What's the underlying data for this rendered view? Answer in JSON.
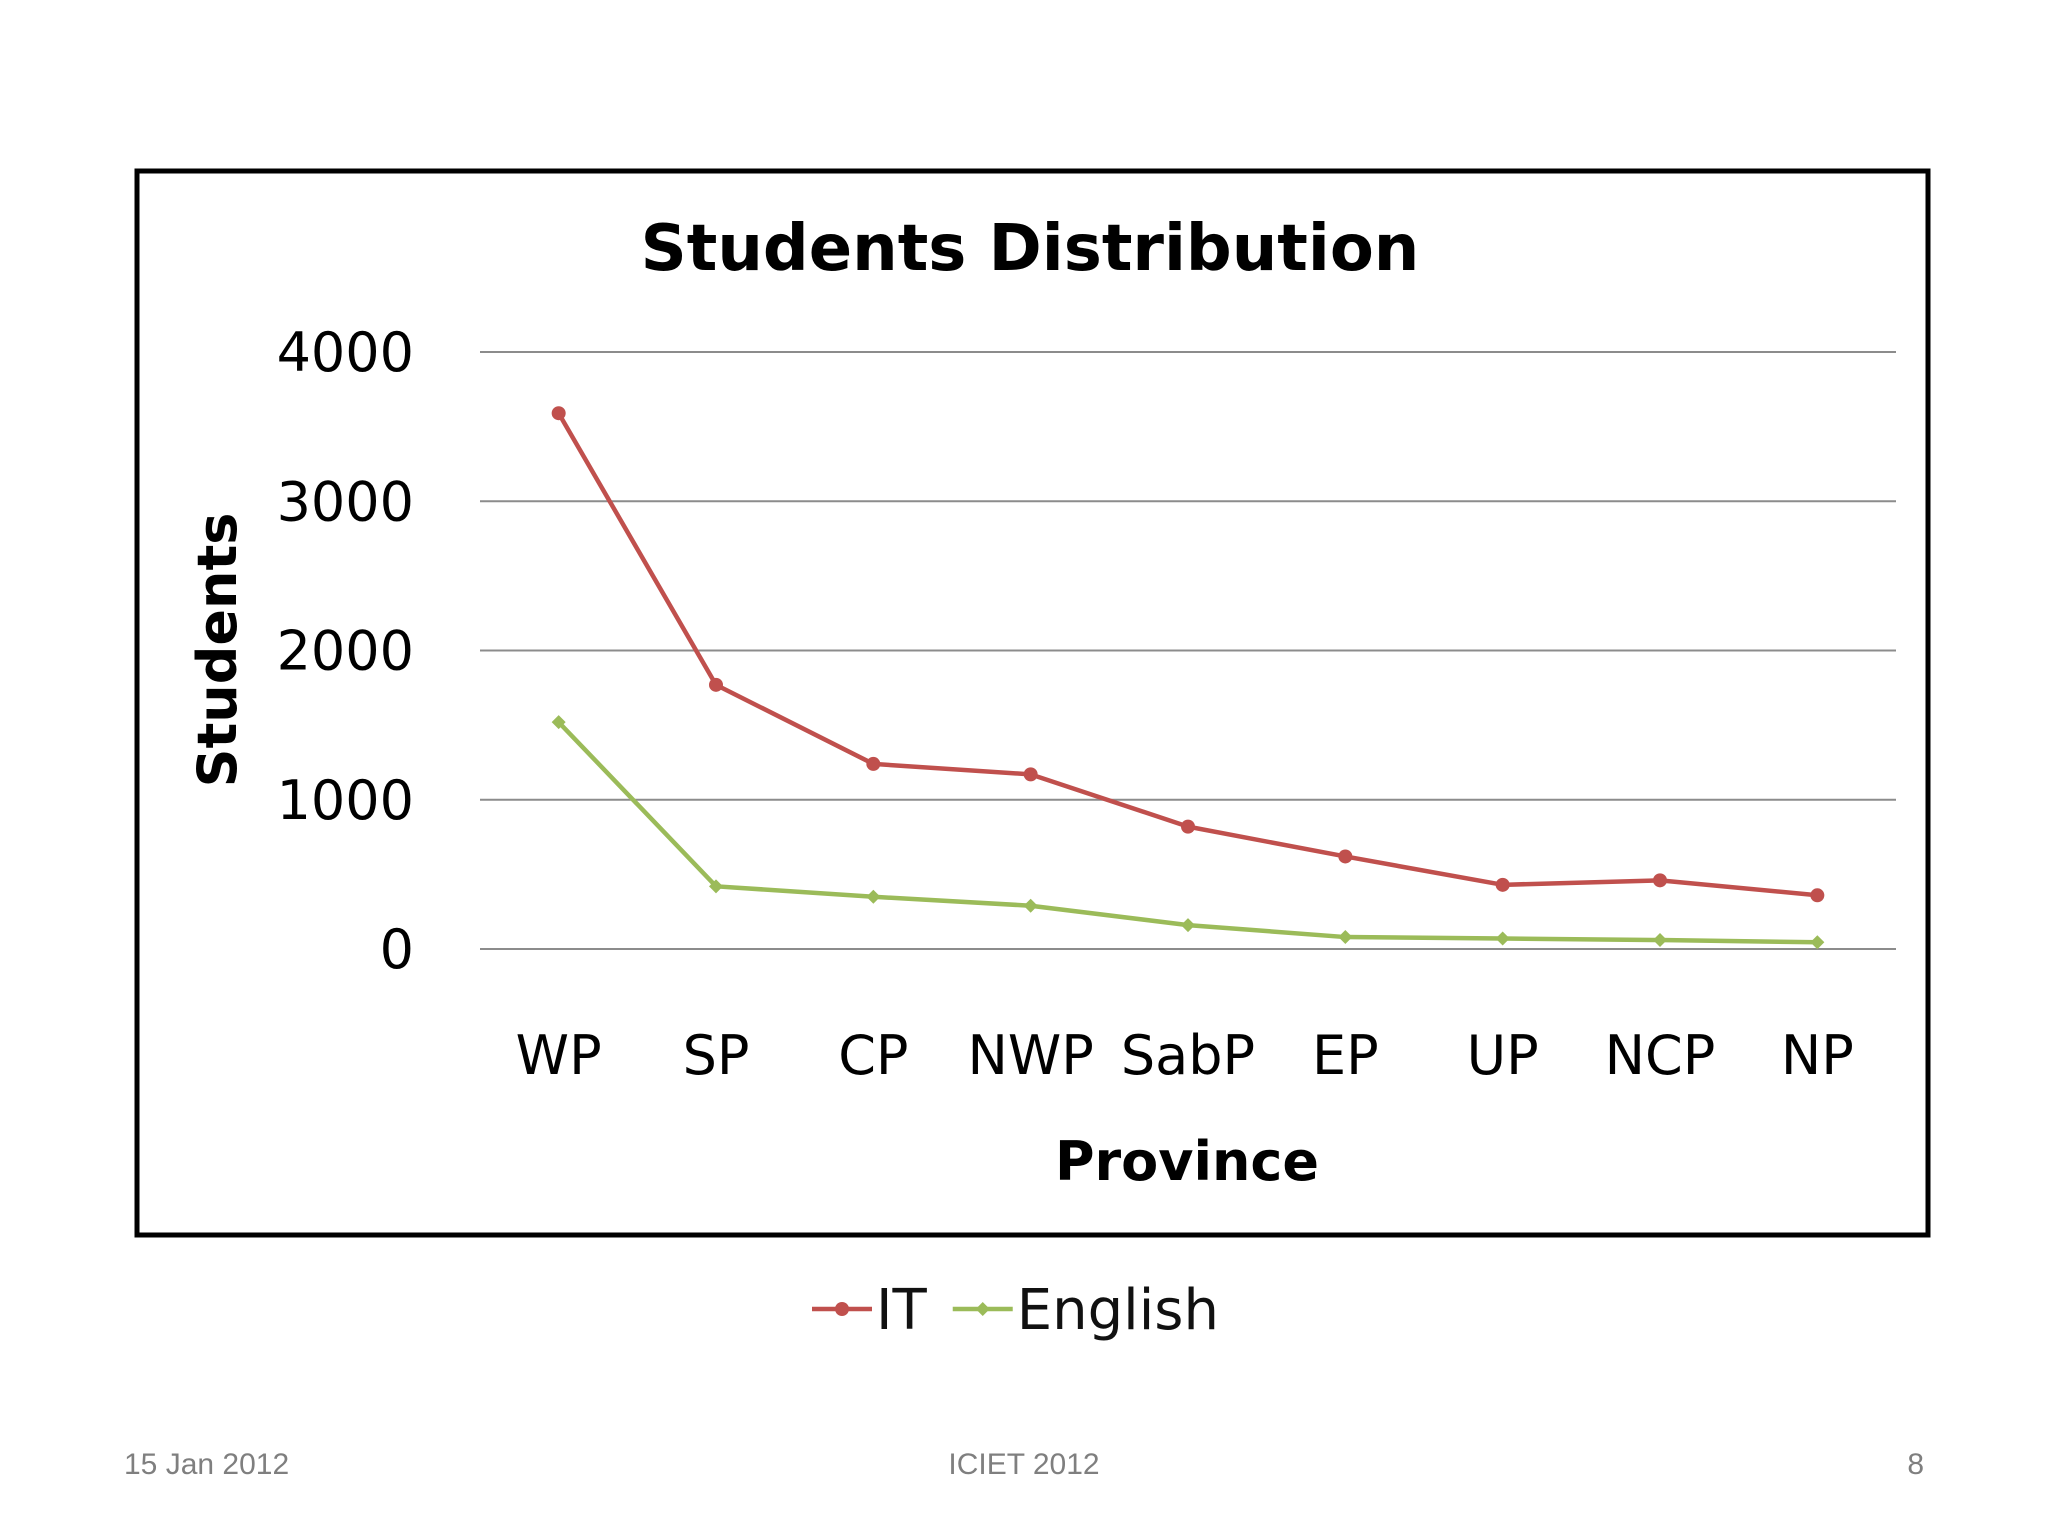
{
  "chart_data": {
    "type": "line",
    "title": "Students Distribution",
    "xlabel": "Province",
    "ylabel": "Students",
    "categories": [
      "WP",
      "SP",
      "CP",
      "NWP",
      "SabP",
      "EP",
      "UP",
      "NCP",
      "NP"
    ],
    "ylim": [
      0,
      4000
    ],
    "yticks": [
      "0",
      "1000",
      "2000",
      "3000",
      "4000"
    ],
    "grid": true,
    "legend": "bottom",
    "series": [
      {
        "name": "IT",
        "color": "#c0504d",
        "marker": "circle",
        "values": [
          3590,
          1770,
          1240,
          1170,
          820,
          620,
          430,
          460,
          360
        ]
      },
      {
        "name": "English",
        "color": "#9bbb59",
        "marker": "diamond",
        "values": [
          1520,
          420,
          350,
          290,
          160,
          80,
          70,
          60,
          45
        ]
      }
    ]
  },
  "footer": {
    "date": "15 Jan 2012",
    "conference": "ICIET 2012",
    "page_number": "8"
  }
}
